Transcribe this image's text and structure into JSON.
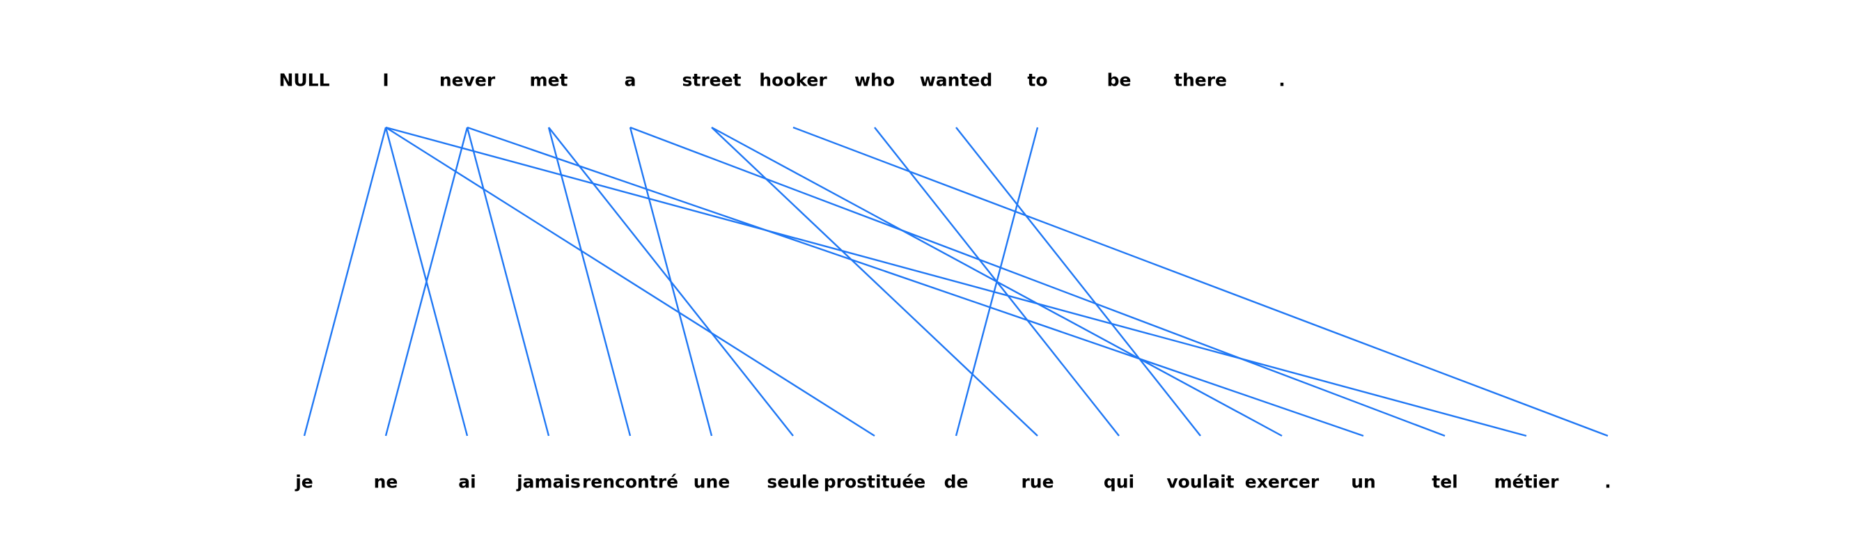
{
  "chart_data": {
    "type": "word-alignment",
    "source_tokens": [
      "NULL",
      "I",
      "never",
      "met",
      "a",
      "street",
      "hooker",
      "who",
      "wanted",
      "to",
      "be",
      "there",
      "."
    ],
    "target_tokens": [
      "je",
      "ne",
      "ai",
      "jamais",
      "rencontré",
      "une",
      "seule",
      "prostituée",
      "de",
      "rue",
      "qui",
      "voulait",
      "exercer",
      "un",
      "tel",
      "métier",
      "."
    ],
    "alignments": [
      [
        1,
        0
      ],
      [
        1,
        2
      ],
      [
        1,
        7
      ],
      [
        1,
        15
      ],
      [
        2,
        1
      ],
      [
        2,
        3
      ],
      [
        2,
        13
      ],
      [
        3,
        4
      ],
      [
        3,
        6
      ],
      [
        4,
        5
      ],
      [
        4,
        14
      ],
      [
        5,
        9
      ],
      [
        5,
        12
      ],
      [
        6,
        16
      ],
      [
        7,
        10
      ],
      [
        8,
        11
      ],
      [
        9,
        8
      ]
    ],
    "line_color": "#1f77f4"
  }
}
